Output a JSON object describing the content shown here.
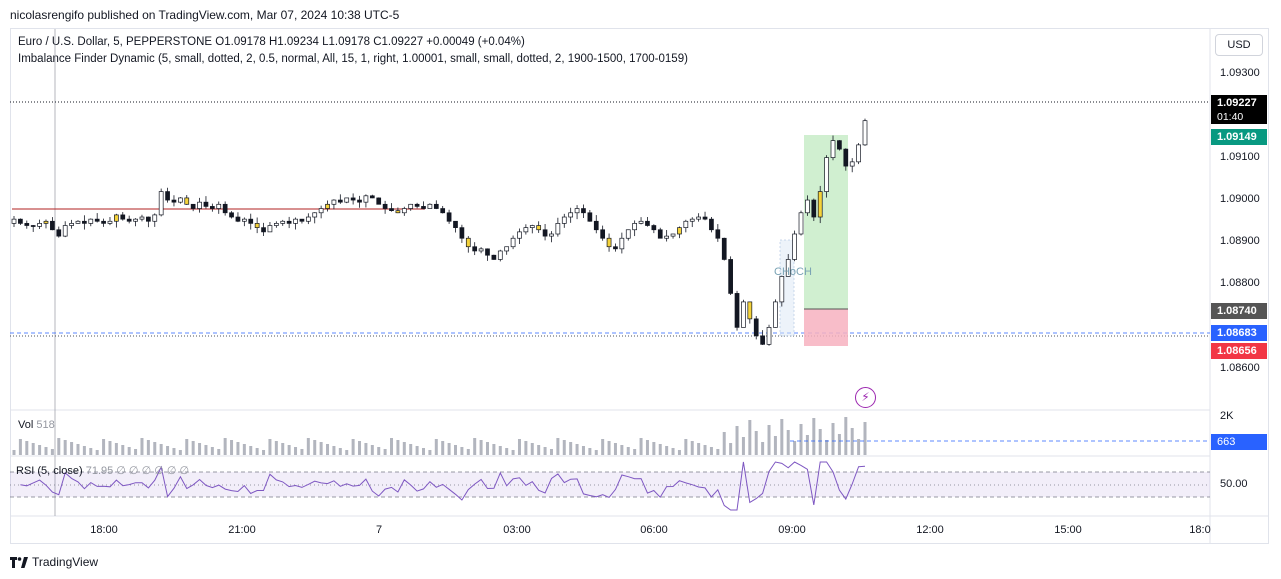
{
  "header": {
    "credit": "nicolasrengifo published on TradingView.com, Mar 07, 2024 10:38 UTC-5"
  },
  "legend": {
    "symbol": "Euro / U.S. Dollar, 5, PEPPERSTONE",
    "ohlc": "O1.09178  H1.09234  L1.09178  C1.09227  +0.00049 (+0.04%)",
    "indicator": "Imbalance Finder Dynamic (5, small, dotted, 2, 0.5, normal, All, 15, 1, right, 1.00001, small, small, dotted, 2, 1900-1500, 1700-0159)"
  },
  "currency_button": "USD",
  "price_axis": {
    "ticks": [
      "1.09300",
      "1.09100",
      "1.09000",
      "1.08900",
      "1.08800",
      "1.08600"
    ],
    "current_price": "1.09227",
    "countdown": "01:40",
    "target_price": "1.09149",
    "entry_price": "1.08740",
    "dashed_level": "1.08683",
    "stop_price": "1.08656"
  },
  "chart_annotation": "CHoCH",
  "volume_pane": {
    "label": "Vol",
    "value": "518",
    "axis_tick": "2K",
    "current": "663"
  },
  "rsi_pane": {
    "label": "RSI (5, close)",
    "values": "71.95  ∅  ∅  ∅  ∅  ∅  ∅",
    "axis_tick": "50.00"
  },
  "time_axis": [
    "18:00",
    "21:00",
    "7",
    "03:00",
    "06:00",
    "09:00",
    "12:00",
    "15:00",
    "18:0"
  ],
  "footer": {
    "brand": "TradingView"
  },
  "colors": {
    "up": "#131722",
    "down": "#131722",
    "imbalance_yellow": "#f5d33b",
    "target_zone": "#c8ecc8",
    "stop_zone": "#f7b2c0",
    "current_tag": "#000000",
    "target_tag": "#089981",
    "entry_tag": "#555555",
    "dashed_tag": "#2962ff",
    "stop_tag": "#f23645",
    "rsi_line": "#7e57c2",
    "hline": "#b22222"
  },
  "chart_data": {
    "type": "candlestick",
    "y_range": [
      1.0855,
      1.0937
    ],
    "x_labels": [
      "18:00",
      "21:00",
      "7",
      "03:00",
      "06:00",
      "09:00",
      "12:00",
      "15:00",
      "18:0"
    ],
    "close_path": [
      1.08995,
      1.08985,
      1.0898,
      1.08978,
      1.08985,
      1.0899,
      1.0897,
      1.08955,
      1.0898,
      1.08985,
      1.0899,
      1.08985,
      1.08995,
      1.0899,
      1.08985,
      1.0899,
      1.09005,
      1.08995,
      1.0899,
      1.08995,
      1.09,
      1.0899,
      1.09005,
      1.0906,
      1.0904,
      1.09035,
      1.09045,
      1.0903,
      1.0902,
      1.09035,
      1.09025,
      1.0902,
      1.0903,
      1.0901,
      1.09,
      1.0899,
      1.08995,
      1.08985,
      1.08975,
      1.08965,
      1.0898,
      1.08985,
      1.0899,
      1.08985,
      1.08995,
      1.0899,
      1.09,
      1.0901,
      1.0902,
      1.0903,
      1.0904,
      1.09035,
      1.09045,
      1.0904,
      1.09035,
      1.0905,
      1.09045,
      1.0903,
      1.0902,
      1.09015,
      1.0901,
      1.0902,
      1.0903,
      1.09025,
      1.0902,
      1.0903,
      1.0902,
      1.0901,
      1.0899,
      1.08975,
      1.0895,
      1.0893,
      1.0892,
      1.08925,
      1.0891,
      1.089,
      1.0892,
      1.0893,
      1.0895,
      1.08965,
      1.08975,
      1.0898,
      1.0897,
      1.08955,
      1.0896,
      1.08985,
      1.09,
      1.0901,
      1.0902,
      1.0901,
      1.0899,
      1.0897,
      1.0895,
      1.0893,
      1.08925,
      1.0895,
      1.0897,
      1.08985,
      1.0899,
      1.0898,
      1.0897,
      1.0895,
      1.08955,
      1.0896,
      1.08975,
      1.0899,
      1.08995,
      1.09,
      1.08995,
      1.0897,
      1.0895,
      1.089,
      1.0882,
      1.0874,
      1.088,
      1.0876,
      1.0872,
      1.087,
      1.0874,
      1.088,
      1.0886,
      1.089,
      1.0896,
      1.0901,
      1.0904,
      1.09,
      1.0906,
      1.0914,
      1.0918,
      1.0916,
      1.0912,
      1.0913,
      1.0917,
      1.09227
    ]
  }
}
